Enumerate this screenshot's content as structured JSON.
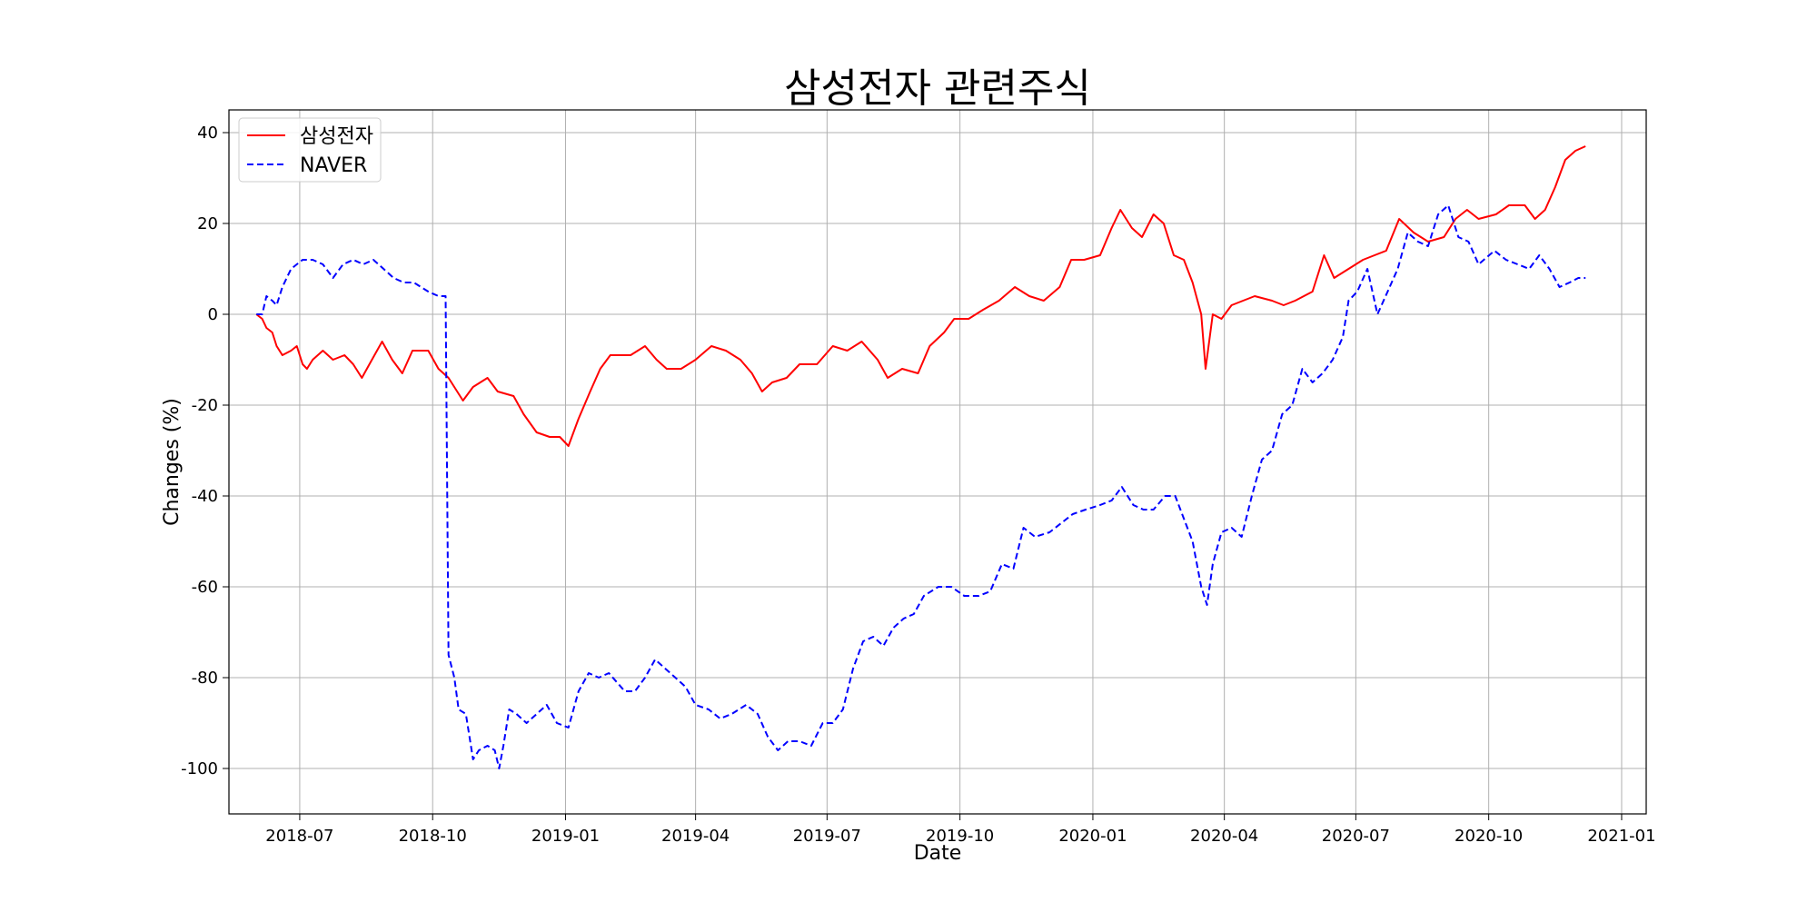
{
  "chart_data": {
    "type": "line",
    "title": "삼성전자 관련주식",
    "xlabel": "Date",
    "ylabel": "Changes (%)",
    "xlim": [
      "2018-05-13",
      "2021-01-18"
    ],
    "ylim": [
      -110,
      45
    ],
    "grid": true,
    "legend_position": "top-left",
    "x_ticks": [
      "2018-07",
      "2018-10",
      "2019-01",
      "2019-04",
      "2019-07",
      "2019-10",
      "2020-01",
      "2020-04",
      "2020-07",
      "2020-10",
      "2021-01"
    ],
    "y_ticks": [
      40,
      20,
      0,
      -20,
      -40,
      -60,
      -80,
      -100
    ],
    "series": [
      {
        "name": "삼성전자",
        "color": "#ff0000",
        "style": "solid",
        "points": [
          [
            "2018-06-01",
            0
          ],
          [
            "2018-06-05",
            -1
          ],
          [
            "2018-06-08",
            -3
          ],
          [
            "2018-06-12",
            -4
          ],
          [
            "2018-06-15",
            -7
          ],
          [
            "2018-06-19",
            -9
          ],
          [
            "2018-06-25",
            -8
          ],
          [
            "2018-06-29",
            -7
          ],
          [
            "2018-07-03",
            -11
          ],
          [
            "2018-07-06",
            -12
          ],
          [
            "2018-07-10",
            -10
          ],
          [
            "2018-07-17",
            -8
          ],
          [
            "2018-07-24",
            -10
          ],
          [
            "2018-08-01",
            -9
          ],
          [
            "2018-08-07",
            -11
          ],
          [
            "2018-08-13",
            -14
          ],
          [
            "2018-08-20",
            -10
          ],
          [
            "2018-08-27",
            -6
          ],
          [
            "2018-09-03",
            -10
          ],
          [
            "2018-09-10",
            -13
          ],
          [
            "2018-09-17",
            -8
          ],
          [
            "2018-09-28",
            -8
          ],
          [
            "2018-10-05",
            -12
          ],
          [
            "2018-10-12",
            -14
          ],
          [
            "2018-10-22",
            -19
          ],
          [
            "2018-10-29",
            -16
          ],
          [
            "2018-11-08",
            -14
          ],
          [
            "2018-11-15",
            -17
          ],
          [
            "2018-11-26",
            -18
          ],
          [
            "2018-12-03",
            -22
          ],
          [
            "2018-12-12",
            -26
          ],
          [
            "2018-12-21",
            -27
          ],
          [
            "2018-12-28",
            -27
          ],
          [
            "2019-01-03",
            -29
          ],
          [
            "2019-01-10",
            -23
          ],
          [
            "2019-01-18",
            -17
          ],
          [
            "2019-01-25",
            -12
          ],
          [
            "2019-02-01",
            -9
          ],
          [
            "2019-02-15",
            -9
          ],
          [
            "2019-02-25",
            -7
          ],
          [
            "2019-03-05",
            -10
          ],
          [
            "2019-03-12",
            -12
          ],
          [
            "2019-03-22",
            -12
          ],
          [
            "2019-04-01",
            -10
          ],
          [
            "2019-04-12",
            -7
          ],
          [
            "2019-04-22",
            -8
          ],
          [
            "2019-05-02",
            -10
          ],
          [
            "2019-05-10",
            -13
          ],
          [
            "2019-05-17",
            -17
          ],
          [
            "2019-05-24",
            -15
          ],
          [
            "2019-06-03",
            -14
          ],
          [
            "2019-06-12",
            -11
          ],
          [
            "2019-06-24",
            -11
          ],
          [
            "2019-07-05",
            -7
          ],
          [
            "2019-07-15",
            -8
          ],
          [
            "2019-07-25",
            -6
          ],
          [
            "2019-08-05",
            -10
          ],
          [
            "2019-08-12",
            -14
          ],
          [
            "2019-08-22",
            -12
          ],
          [
            "2019-09-02",
            -13
          ],
          [
            "2019-09-10",
            -7
          ],
          [
            "2019-09-20",
            -4
          ],
          [
            "2019-09-27",
            -1
          ],
          [
            "2019-10-07",
            -1
          ],
          [
            "2019-10-17",
            1
          ],
          [
            "2019-10-28",
            3
          ],
          [
            "2019-11-08",
            6
          ],
          [
            "2019-11-18",
            4
          ],
          [
            "2019-11-28",
            3
          ],
          [
            "2019-12-09",
            6
          ],
          [
            "2019-12-17",
            12
          ],
          [
            "2019-12-26",
            12
          ],
          [
            "2020-01-06",
            13
          ],
          [
            "2020-01-14",
            19
          ],
          [
            "2020-01-20",
            23
          ],
          [
            "2020-01-28",
            19
          ],
          [
            "2020-02-04",
            17
          ],
          [
            "2020-02-12",
            22
          ],
          [
            "2020-02-19",
            20
          ],
          [
            "2020-02-26",
            13
          ],
          [
            "2020-03-04",
            12
          ],
          [
            "2020-03-10",
            7
          ],
          [
            "2020-03-16",
            0
          ],
          [
            "2020-03-19",
            -12
          ],
          [
            "2020-03-24",
            0
          ],
          [
            "2020-03-30",
            -1
          ],
          [
            "2020-04-06",
            2
          ],
          [
            "2020-04-14",
            3
          ],
          [
            "2020-04-22",
            4
          ],
          [
            "2020-05-04",
            3
          ],
          [
            "2020-05-12",
            2
          ],
          [
            "2020-05-20",
            3
          ],
          [
            "2020-06-01",
            5
          ],
          [
            "2020-06-09",
            13
          ],
          [
            "2020-06-16",
            8
          ],
          [
            "2020-06-26",
            10
          ],
          [
            "2020-07-06",
            12
          ],
          [
            "2020-07-14",
            13
          ],
          [
            "2020-07-22",
            14
          ],
          [
            "2020-07-31",
            21
          ],
          [
            "2020-08-10",
            18
          ],
          [
            "2020-08-20",
            16
          ],
          [
            "2020-08-31",
            17
          ],
          [
            "2020-09-08",
            21
          ],
          [
            "2020-09-16",
            23
          ],
          [
            "2020-09-24",
            21
          ],
          [
            "2020-10-06",
            22
          ],
          [
            "2020-10-15",
            24
          ],
          [
            "2020-10-26",
            24
          ],
          [
            "2020-11-02",
            21
          ],
          [
            "2020-11-09",
            23
          ],
          [
            "2020-11-16",
            28
          ],
          [
            "2020-11-23",
            34
          ],
          [
            "2020-11-30",
            36
          ],
          [
            "2020-12-07",
            37
          ]
        ]
      },
      {
        "name": "NAVER",
        "color": "#0000ff",
        "style": "dashed",
        "points": [
          [
            "2018-06-01",
            0
          ],
          [
            "2018-06-05",
            0
          ],
          [
            "2018-06-08",
            4
          ],
          [
            "2018-06-12",
            3
          ],
          [
            "2018-06-15",
            2
          ],
          [
            "2018-06-19",
            6
          ],
          [
            "2018-06-25",
            10
          ],
          [
            "2018-06-29",
            11
          ],
          [
            "2018-07-03",
            12
          ],
          [
            "2018-07-10",
            12
          ],
          [
            "2018-07-17",
            11
          ],
          [
            "2018-07-24",
            8
          ],
          [
            "2018-07-31",
            11
          ],
          [
            "2018-08-07",
            12
          ],
          [
            "2018-08-14",
            11
          ],
          [
            "2018-08-21",
            12
          ],
          [
            "2018-08-28",
            10
          ],
          [
            "2018-09-04",
            8
          ],
          [
            "2018-09-11",
            7
          ],
          [
            "2018-09-18",
            7
          ],
          [
            "2018-09-28",
            5
          ],
          [
            "2018-10-05",
            4
          ],
          [
            "2018-10-10",
            4
          ],
          [
            "2018-10-12",
            -75
          ],
          [
            "2018-10-16",
            -80
          ],
          [
            "2018-10-19",
            -87
          ],
          [
            "2018-10-24",
            -88
          ],
          [
            "2018-10-29",
            -98
          ],
          [
            "2018-11-02",
            -96
          ],
          [
            "2018-11-08",
            -95
          ],
          [
            "2018-11-13",
            -96
          ],
          [
            "2018-11-16",
            -100
          ],
          [
            "2018-11-19",
            -95
          ],
          [
            "2018-11-23",
            -87
          ],
          [
            "2018-11-28",
            -88
          ],
          [
            "2018-12-05",
            -90
          ],
          [
            "2018-12-12",
            -88
          ],
          [
            "2018-12-19",
            -86
          ],
          [
            "2018-12-26",
            -90
          ],
          [
            "2019-01-03",
            -91
          ],
          [
            "2019-01-10",
            -83
          ],
          [
            "2019-01-17",
            -79
          ],
          [
            "2019-01-24",
            -80
          ],
          [
            "2019-01-31",
            -79
          ],
          [
            "2019-02-11",
            -83
          ],
          [
            "2019-02-18",
            -83
          ],
          [
            "2019-02-25",
            -80
          ],
          [
            "2019-03-04",
            -76
          ],
          [
            "2019-03-11",
            -78
          ],
          [
            "2019-03-18",
            -80
          ],
          [
            "2019-03-25",
            -82
          ],
          [
            "2019-04-01",
            -86
          ],
          [
            "2019-04-10",
            -87
          ],
          [
            "2019-04-18",
            -89
          ],
          [
            "2019-04-26",
            -88
          ],
          [
            "2019-05-06",
            -86
          ],
          [
            "2019-05-14",
            -88
          ],
          [
            "2019-05-21",
            -93
          ],
          [
            "2019-05-28",
            -96
          ],
          [
            "2019-06-04",
            -94
          ],
          [
            "2019-06-12",
            -94
          ],
          [
            "2019-06-20",
            -95
          ],
          [
            "2019-06-28",
            -90
          ],
          [
            "2019-07-05",
            -90
          ],
          [
            "2019-07-12",
            -87
          ],
          [
            "2019-07-19",
            -78
          ],
          [
            "2019-07-26",
            -72
          ],
          [
            "2019-08-02",
            -71
          ],
          [
            "2019-08-09",
            -73
          ],
          [
            "2019-08-16",
            -69
          ],
          [
            "2019-08-23",
            -67
          ],
          [
            "2019-08-30",
            -66
          ],
          [
            "2019-09-06",
            -62
          ],
          [
            "2019-09-16",
            -60
          ],
          [
            "2019-09-25",
            -60
          ],
          [
            "2019-10-04",
            -62
          ],
          [
            "2019-10-14",
            -62
          ],
          [
            "2019-10-22",
            -61
          ],
          [
            "2019-10-30",
            -55
          ],
          [
            "2019-11-07",
            -56
          ],
          [
            "2019-11-14",
            -47
          ],
          [
            "2019-11-22",
            -49
          ],
          [
            "2019-12-02",
            -48
          ],
          [
            "2019-12-10",
            -46
          ],
          [
            "2019-12-18",
            -44
          ],
          [
            "2019-12-27",
            -43
          ],
          [
            "2020-01-06",
            -42
          ],
          [
            "2020-01-14",
            -41
          ],
          [
            "2020-01-21",
            -38
          ],
          [
            "2020-01-29",
            -42
          ],
          [
            "2020-02-05",
            -43
          ],
          [
            "2020-02-12",
            -43
          ],
          [
            "2020-02-20",
            -40
          ],
          [
            "2020-02-27",
            -40
          ],
          [
            "2020-03-04",
            -45
          ],
          [
            "2020-03-10",
            -50
          ],
          [
            "2020-03-16",
            -60
          ],
          [
            "2020-03-20",
            -64
          ],
          [
            "2020-03-24",
            -55
          ],
          [
            "2020-03-30",
            -48
          ],
          [
            "2020-04-06",
            -47
          ],
          [
            "2020-04-13",
            -49
          ],
          [
            "2020-04-20",
            -40
          ],
          [
            "2020-04-27",
            -32
          ],
          [
            "2020-05-04",
            -30
          ],
          [
            "2020-05-11",
            -22
          ],
          [
            "2020-05-18",
            -20
          ],
          [
            "2020-05-25",
            -12
          ],
          [
            "2020-06-01",
            -15
          ],
          [
            "2020-06-08",
            -13
          ],
          [
            "2020-06-15",
            -10
          ],
          [
            "2020-06-22",
            -5
          ],
          [
            "2020-06-26",
            3
          ],
          [
            "2020-07-02",
            5
          ],
          [
            "2020-07-09",
            10
          ],
          [
            "2020-07-16",
            0
          ],
          [
            "2020-07-23",
            5
          ],
          [
            "2020-07-30",
            10
          ],
          [
            "2020-08-06",
            18
          ],
          [
            "2020-08-13",
            16
          ],
          [
            "2020-08-20",
            15
          ],
          [
            "2020-08-27",
            22
          ],
          [
            "2020-09-03",
            24
          ],
          [
            "2020-09-10",
            17
          ],
          [
            "2020-09-17",
            16
          ],
          [
            "2020-09-24",
            11
          ],
          [
            "2020-10-05",
            14
          ],
          [
            "2020-10-13",
            12
          ],
          [
            "2020-10-21",
            11
          ],
          [
            "2020-10-29",
            10
          ],
          [
            "2020-11-05",
            13
          ],
          [
            "2020-11-12",
            10
          ],
          [
            "2020-11-19",
            6
          ],
          [
            "2020-11-26",
            7
          ],
          [
            "2020-12-02",
            8
          ],
          [
            "2020-12-07",
            8
          ]
        ]
      }
    ]
  }
}
